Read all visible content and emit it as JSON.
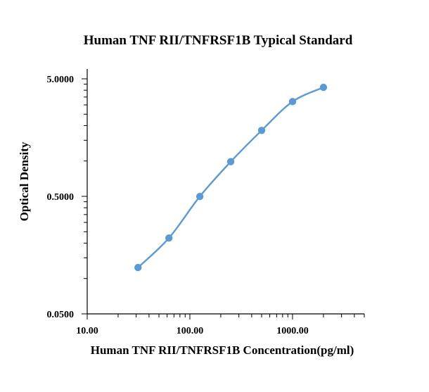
{
  "chart_data": {
    "type": "scatter",
    "title": "Human TNF RII/TNFRSF1B Typical Standard",
    "xlabel": "Human TNF RII/TNFRSF1B Concentration(pg/ml)",
    "ylabel": "Optical Density",
    "x_scale": "log",
    "y_scale": "log",
    "xlim": [
      10,
      5000
    ],
    "ylim": [
      0.05,
      5
    ],
    "x_ticks": [
      "10.00",
      "100.00",
      "1000.00"
    ],
    "y_ticks": [
      "0.0500",
      "0.5000",
      "5.0000"
    ],
    "grid": false,
    "legend": "none",
    "smooth_line": true,
    "series": [
      {
        "color": "#5b9bd5",
        "points": [
          {
            "x": 31.25,
            "y": 0.124
          },
          {
            "x": 62.5,
            "y": 0.221
          },
          {
            "x": 125,
            "y": 0.499
          },
          {
            "x": 250,
            "y": 0.986
          },
          {
            "x": 500,
            "y": 1.82
          },
          {
            "x": 1000,
            "y": 3.2
          },
          {
            "x": 2000,
            "y": 4.23
          }
        ]
      }
    ]
  }
}
